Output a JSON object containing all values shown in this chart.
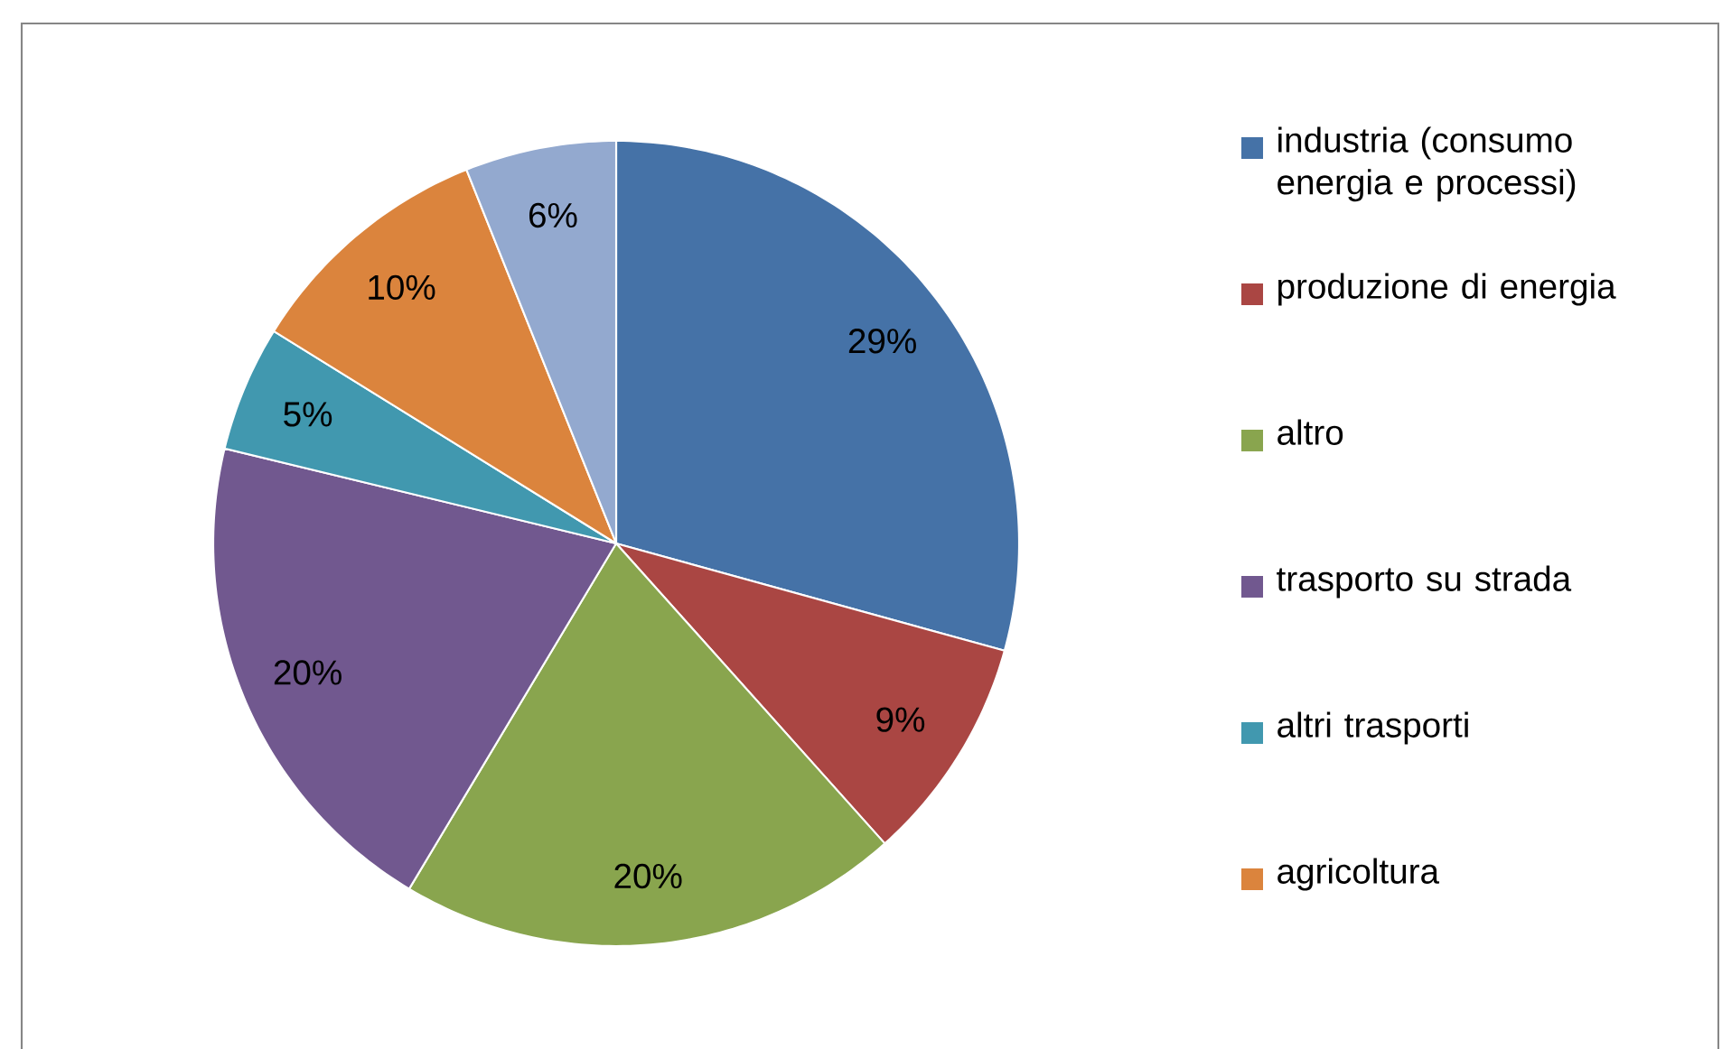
{
  "chart_data": {
    "type": "pie",
    "categories": [
      "industria (consumo energia e processi)",
      "produzione di energia",
      "altro",
      "trasporto su strada",
      "altri trasporti",
      "agricoltura",
      null
    ],
    "values": [
      29,
      9,
      20,
      20,
      5,
      10,
      6
    ],
    "value_labels": [
      "29%",
      "9%",
      "20%",
      "20%",
      "5%",
      "10%",
      "6%"
    ],
    "colors": [
      "#4572a7",
      "#aa4643",
      "#89a54e",
      "#71588f",
      "#4198af",
      "#db843d",
      "#93a9cf"
    ],
    "legend": "right"
  }
}
